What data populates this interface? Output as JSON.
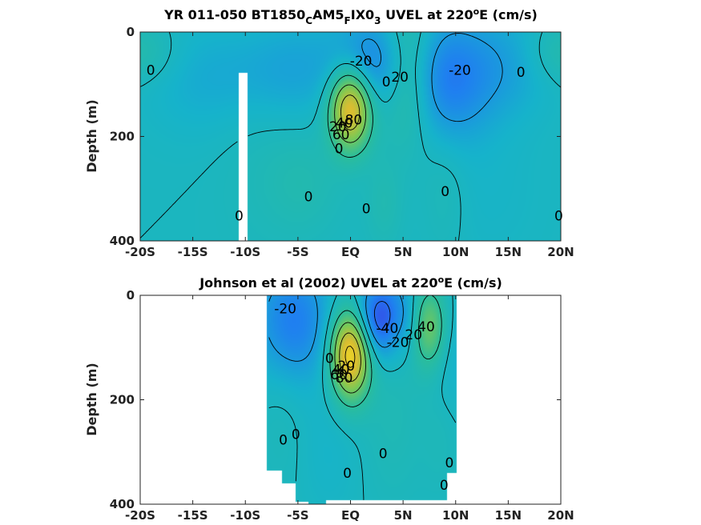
{
  "chart_data": [
    {
      "type": "heatmap",
      "title": "YR 011-050 BT1850",
      "title_sub1": "C",
      "title_mid1": "AM5",
      "title_sub2": "F",
      "title_mid2": "IX0",
      "title_sub3": "3",
      "title_mid3": " UVEL at 220",
      "title_sup": "o",
      "title_end": "E (cm/s)",
      "ylabel": "Depth (m)",
      "xlim": [
        -20,
        20
      ],
      "ylim": [
        0,
        400
      ],
      "y_reversed": true,
      "xticks": [
        -20,
        -15,
        -10,
        -5,
        0,
        5,
        10,
        15,
        20
      ],
      "xtick_labels": [
        "-20S",
        "-15S",
        "-10S",
        "-5S",
        "EQ",
        "5N",
        "10N",
        "15N",
        "20N"
      ],
      "yticks": [
        0,
        200,
        400
      ],
      "ytick_labels": [
        "0",
        "200",
        "400"
      ],
      "colormap": [
        "#3d39e5",
        "#1f80f0",
        "#16b3cb",
        "#2bbd9c",
        "#7ec954",
        "#d8bd32",
        "#f9e51f"
      ],
      "features": [
        {
          "kind": "jet",
          "x": 0,
          "y": 145,
          "sx": 1.4,
          "sy": 55,
          "v": 85
        },
        {
          "kind": "jet",
          "x": 5.5,
          "y": 80,
          "sx": 1.8,
          "sy": 90,
          "v": 32
        },
        {
          "kind": "jet",
          "x": -4.5,
          "y": 290,
          "sx": 2.5,
          "sy": 70,
          "v": 8
        },
        {
          "kind": "jet",
          "x": 3.2,
          "y": 330,
          "sx": 1.2,
          "sy": 60,
          "v": 8
        },
        {
          "kind": "jet",
          "x": 9,
          "y": 300,
          "sx": 1.5,
          "sy": 90,
          "v": 6
        },
        {
          "kind": "jet",
          "x": -20,
          "y": 40,
          "sx": 2.5,
          "sy": 40,
          "v": 12
        },
        {
          "kind": "jet",
          "x": 20,
          "y": 40,
          "sx": 2.5,
          "sy": 40,
          "v": 12
        },
        {
          "kind": "jet",
          "x": -9,
          "y": 150,
          "sx": 3,
          "sy": 200,
          "v": 4
        },
        {
          "kind": "sec",
          "x": 2,
          "y": 60,
          "sx": 2.5,
          "sy": 60,
          "v": -30
        },
        {
          "kind": "sec",
          "x": 9,
          "y": 90,
          "sx": 3,
          "sy": 80,
          "v": -35
        },
        {
          "kind": "sec",
          "x": -6,
          "y": 70,
          "sx": 4,
          "sy": 70,
          "v": -16
        },
        {
          "kind": "sec",
          "x": -14,
          "y": 90,
          "sx": 4,
          "sy": 80,
          "v": -10
        },
        {
          "kind": "sec",
          "x": 15,
          "y": 60,
          "sx": 3,
          "sy": 70,
          "v": -14
        },
        {
          "kind": "sec",
          "x": 13,
          "y": 300,
          "sx": 4,
          "sy": 120,
          "v": -4
        }
      ],
      "masks": [
        {
          "x0": -10.6,
          "x1": -9.8,
          "y0": 78,
          "y1": 400
        }
      ],
      "contour_levels": [
        -40,
        -20,
        0,
        20,
        40,
        60,
        80
      ],
      "contour_labels": [
        {
          "x": -19.0,
          "y": 73,
          "text": "0"
        },
        {
          "x": 1.0,
          "y": 55,
          "text": "-20"
        },
        {
          "x": 3.4,
          "y": 95,
          "text": "0"
        },
        {
          "x": 4.7,
          "y": 86,
          "text": "20"
        },
        {
          "x": 10.4,
          "y": 73,
          "text": "-20"
        },
        {
          "x": 16.2,
          "y": 77,
          "text": "0"
        },
        {
          "x": 0.3,
          "y": 168,
          "text": "80"
        },
        {
          "x": -0.6,
          "y": 174,
          "text": "40"
        },
        {
          "x": -1.2,
          "y": 181,
          "text": "20"
        },
        {
          "x": -0.9,
          "y": 196,
          "text": "60"
        },
        {
          "x": -1.1,
          "y": 223,
          "text": "0"
        },
        {
          "x": -4.0,
          "y": 315,
          "text": "0"
        },
        {
          "x": 1.5,
          "y": 338,
          "text": "0"
        },
        {
          "x": 9.0,
          "y": 305,
          "text": "0"
        },
        {
          "x": -10.6,
          "y": 352,
          "text": "0"
        },
        {
          "x": 19.8,
          "y": 352,
          "text": "0"
        }
      ]
    },
    {
      "type": "heatmap",
      "title": "Johnson et al (2002) UVEL at 220",
      "title_sup": "o",
      "title_end": "E (cm/s)",
      "ylabel": "Depth (m)",
      "xlim": [
        -20,
        20
      ],
      "ylim": [
        0,
        400
      ],
      "y_reversed": true,
      "xticks": [
        -20,
        -15,
        -10,
        -5,
        0,
        5,
        10,
        15,
        20
      ],
      "xtick_labels": [
        "-20S",
        "-15S",
        "-10S",
        "-5S",
        "EQ",
        "5N",
        "10N",
        "15N",
        "20N"
      ],
      "yticks": [
        0,
        200,
        400
      ],
      "ytick_labels": [
        "0",
        "200",
        "400"
      ],
      "colormap": [
        "#3d39e5",
        "#1f80f0",
        "#16b3cb",
        "#2bbd9c",
        "#7ec954",
        "#d8bd32",
        "#f9e51f"
      ],
      "features": [
        {
          "kind": "jet",
          "x": 0,
          "y": 110,
          "sx": 1.3,
          "sy": 60,
          "v": 95
        },
        {
          "kind": "jet",
          "x": 7.5,
          "y": 60,
          "sx": 1.2,
          "sy": 55,
          "v": 45
        },
        {
          "kind": "jet",
          "x": 4.3,
          "y": 60,
          "sx": 0.8,
          "sy": 40,
          "v": 12
        },
        {
          "kind": "jet",
          "x": -6.5,
          "y": 200,
          "sx": 1.5,
          "sy": 120,
          "v": 4
        },
        {
          "kind": "jet",
          "x": 4,
          "y": 230,
          "sx": 2,
          "sy": 110,
          "v": 6
        },
        {
          "kind": "jet",
          "x": 8.5,
          "y": 260,
          "sx": 1.2,
          "sy": 80,
          "v": 4
        },
        {
          "kind": "sec",
          "x": 3,
          "y": 45,
          "sx": 2,
          "sy": 50,
          "v": -55
        },
        {
          "kind": "sec",
          "x": -5.5,
          "y": 50,
          "sx": 2.5,
          "sy": 80,
          "v": -35
        },
        {
          "kind": "sec",
          "x": 9.5,
          "y": 100,
          "sx": 1.5,
          "sy": 80,
          "v": -10
        },
        {
          "kind": "sec",
          "x": -2,
          "y": 300,
          "sx": 2,
          "sy": 90,
          "v": -5
        }
      ],
      "masks": [
        {
          "x0": -20,
          "x1": -8,
          "y0": 0,
          "y1": 400
        },
        {
          "x0": 10.1,
          "x1": 20,
          "y0": 0,
          "y1": 400
        },
        {
          "x0": -8,
          "x1": -6.5,
          "y0": 335,
          "y1": 400
        },
        {
          "x0": -6.5,
          "x1": -5.2,
          "y0": 360,
          "y1": 400
        },
        {
          "x0": -5.2,
          "x1": -4,
          "y0": 395,
          "y1": 400
        },
        {
          "x0": -2.3,
          "x1": 9.2,
          "y0": 393,
          "y1": 400
        },
        {
          "x0": 9.2,
          "x1": 10.1,
          "y0": 340,
          "y1": 400
        }
      ],
      "contour_levels": [
        -40,
        -20,
        0,
        20,
        40,
        60,
        80
      ],
      "contour_labels": [
        {
          "x": -6.2,
          "y": 25,
          "text": "-20"
        },
        {
          "x": 3.5,
          "y": 63,
          "text": "-40"
        },
        {
          "x": 4.5,
          "y": 90,
          "text": "-20"
        },
        {
          "x": 6.0,
          "y": 75,
          "text": "20"
        },
        {
          "x": 7.2,
          "y": 60,
          "text": "40"
        },
        {
          "x": -2.0,
          "y": 120,
          "text": "0"
        },
        {
          "x": -0.4,
          "y": 135,
          "text": "20"
        },
        {
          "x": -0.9,
          "y": 142,
          "text": "40"
        },
        {
          "x": -1.1,
          "y": 152,
          "text": "60"
        },
        {
          "x": -0.6,
          "y": 158,
          "text": "80"
        },
        {
          "x": -6.4,
          "y": 277,
          "text": "0"
        },
        {
          "x": -5.2,
          "y": 266,
          "text": "0"
        },
        {
          "x": 3.1,
          "y": 303,
          "text": "0"
        },
        {
          "x": 9.4,
          "y": 320,
          "text": "0"
        },
        {
          "x": -0.3,
          "y": 340,
          "text": "0"
        },
        {
          "x": 8.9,
          "y": 363,
          "text": "0"
        }
      ]
    }
  ]
}
